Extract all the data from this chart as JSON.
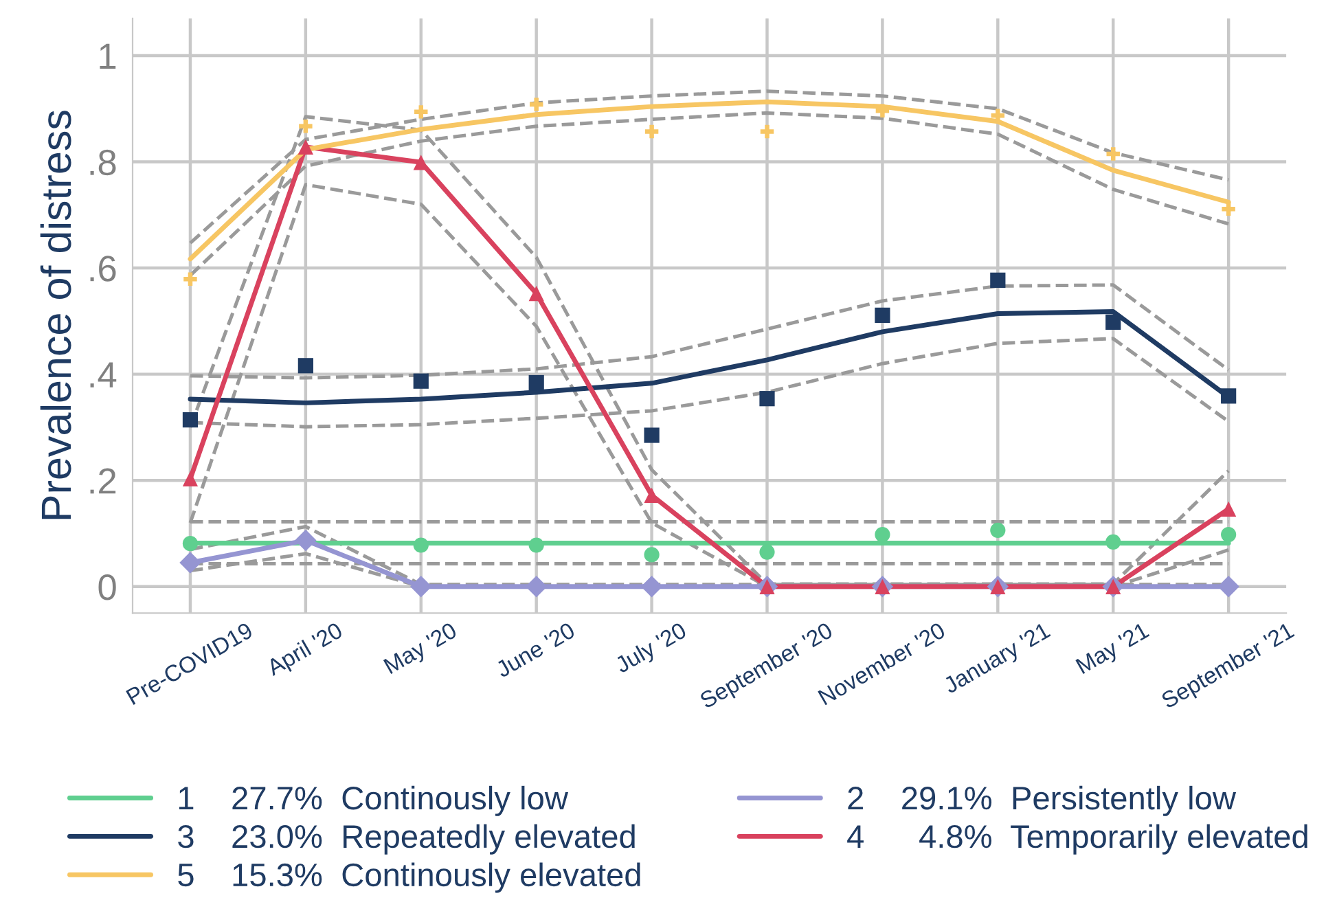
{
  "chart_data": {
    "type": "line",
    "ylabel": "Prevalence of distress",
    "ylim": [
      -0.05,
      1.07
    ],
    "categories": [
      "Pre-COVID19",
      "April '20",
      "May '20",
      "June '20",
      "July '20",
      "September '20",
      "November '20",
      "January '21",
      "May '21",
      "September '21"
    ],
    "yticks": [
      0,
      {
        "value": 0.2,
        "label": ".2"
      },
      {
        "value": 0.4,
        "label": ".4"
      },
      {
        "value": 0.6,
        "label": ".6"
      },
      {
        "value": 0.8,
        "label": ".8"
      },
      1
    ],
    "grid": true,
    "legend": "bottom",
    "series": [
      {
        "line_style": "dashed",
        "color": "#9a9a9a",
        "values": [
          0.122,
          0.122,
          0.122,
          0.122,
          0.122,
          0.122,
          0.122,
          0.122,
          0.122,
          0.122
        ]
      },
      {
        "line_style": "dashed",
        "color": "#9a9a9a",
        "values": [
          0.043,
          0.043,
          0.043,
          0.043,
          0.043,
          0.043,
          0.043,
          0.043,
          0.043,
          0.043
        ]
      },
      {
        "line_style": "dashed",
        "color": "#9a9a9a",
        "values": [
          0.07,
          0.113,
          0.004,
          0.004,
          0.004,
          0.004,
          0.004,
          0.004,
          0.004,
          0.004
        ]
      },
      {
        "line_style": "dashed",
        "color": "#9a9a9a",
        "values": [
          0.03,
          0.062,
          0,
          0,
          0,
          0,
          0,
          0,
          0,
          0
        ]
      },
      {
        "line_style": "dashed",
        "color": "#9a9a9a",
        "values": [
          0.397,
          0.393,
          0.398,
          0.41,
          0.433,
          0.485,
          0.538,
          0.566,
          0.568,
          0.408
        ]
      },
      {
        "line_style": "dashed",
        "color": "#9a9a9a",
        "values": [
          0.309,
          0.301,
          0.305,
          0.317,
          0.331,
          0.366,
          0.42,
          0.458,
          0.467,
          0.311
        ]
      },
      {
        "line_style": "dashed",
        "color": "#9a9a9a",
        "values": [
          0.3,
          0.885,
          0.86,
          0.62,
          0.22,
          0.005,
          0.005,
          0.005,
          0.005,
          0.218
        ]
      },
      {
        "line_style": "dashed",
        "color": "#9a9a9a",
        "values": [
          0.12,
          0.757,
          0.72,
          0.49,
          0.12,
          0,
          0,
          0,
          0,
          0.069
        ]
      },
      {
        "line_style": "dashed",
        "color": "#9a9a9a",
        "values": [
          0.647,
          0.842,
          0.88,
          0.911,
          0.924,
          0.933,
          0.924,
          0.9,
          0.817,
          0.766
        ]
      },
      {
        "line_style": "dashed",
        "color": "#9a9a9a",
        "values": [
          0.586,
          0.792,
          0.839,
          0.867,
          0.88,
          0.892,
          0.882,
          0.852,
          0.748,
          0.683
        ]
      },
      {
        "name": "1    27.7%  Continously low",
        "color": "#5fcf8f",
        "values": [
          0.082,
          0.082,
          0.082,
          0.082,
          0.082,
          0.082,
          0.082,
          0.082,
          0.082,
          0.082
        ]
      },
      {
        "name": "2    29.1%  Persistently low",
        "color": "#9595d2",
        "values": [
          0.045,
          0.087,
          0,
          0,
          0,
          0,
          0,
          0,
          0,
          0
        ]
      },
      {
        "name": "3    23.0%  Repeatedly elevated",
        "color": "#1f3b63",
        "values": [
          0.353,
          0.346,
          0.353,
          0.366,
          0.383,
          0.427,
          0.48,
          0.514,
          0.518,
          0.357
        ]
      },
      {
        "name": "4      4.8%  Temporarily elevated",
        "color": "#d9425e",
        "values": [
          0.203,
          0.828,
          0.799,
          0.552,
          0.172,
          0,
          0,
          0,
          0,
          0.146
        ]
      },
      {
        "name": "5    15.3%  Continously elevated",
        "color": "#f7c663",
        "values": [
          0.617,
          0.823,
          0.861,
          0.889,
          0.904,
          0.913,
          0.904,
          0.876,
          0.784,
          0.724
        ]
      },
      {
        "type": "scatter",
        "marker": "circle",
        "color": "#5fcf8f",
        "values": [
          0.081,
          null,
          0.078,
          0.078,
          0.06,
          0.065,
          0.098,
          0.106,
          0.084,
          0.098
        ]
      },
      {
        "type": "scatter",
        "marker": "diamond",
        "color": "#9595d2",
        "values": [
          0.045,
          0.087,
          0,
          0,
          0,
          0,
          0,
          0,
          0,
          0
        ]
      },
      {
        "type": "scatter",
        "marker": "square",
        "color": "#1f3b63",
        "values": [
          0.314,
          0.416,
          0.387,
          0.384,
          0.285,
          0.354,
          0.511,
          0.577,
          0.498,
          0.359
        ]
      },
      {
        "type": "scatter",
        "marker": "triangle",
        "color": "#d9425e",
        "values": [
          0.203,
          0.828,
          0.799,
          0.552,
          0.172,
          0,
          0,
          0,
          0,
          0.146
        ]
      },
      {
        "type": "scatter",
        "marker": "cross",
        "color": "#f7c663",
        "values": [
          0.579,
          0.867,
          0.894,
          0.908,
          0.857,
          0.857,
          0.896,
          0.887,
          0.815,
          0.711
        ]
      }
    ]
  }
}
